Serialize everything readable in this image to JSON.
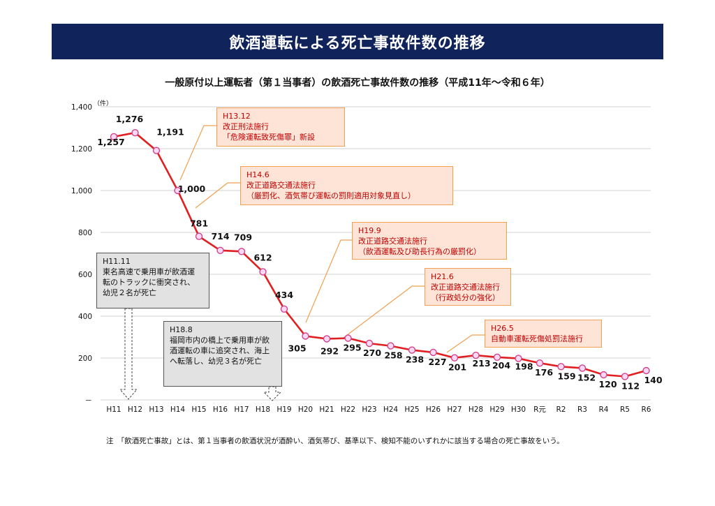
{
  "banner": {
    "title": "飲酒運転による死亡事故件数の推移"
  },
  "chart_data": {
    "type": "line",
    "title": "一般原付以上運転者（第１当事者）の飲酒死亡事故件数の推移（平成11年～令和６年）",
    "y_unit": "（件）",
    "ylim": [
      0,
      1400
    ],
    "yticks": [
      "－",
      "200",
      "400",
      "600",
      "800",
      "1,000",
      "1,200",
      "1,400"
    ],
    "categories": [
      "H11",
      "H12",
      "H13",
      "H14",
      "H15",
      "H16",
      "H17",
      "H18",
      "H19",
      "H20",
      "H21",
      "H22",
      "H23",
      "H24",
      "H25",
      "H26",
      "H27",
      "H28",
      "H29",
      "H30",
      "R元",
      "R2",
      "R3",
      "R4",
      "R5",
      "R6"
    ],
    "values": [
      1257,
      1276,
      1191,
      1000,
      781,
      714,
      709,
      612,
      434,
      305,
      292,
      295,
      270,
      258,
      238,
      227,
      201,
      213,
      204,
      198,
      176,
      159,
      152,
      120,
      112,
      140
    ],
    "value_labels": [
      "1,257",
      "1,276",
      "1,191",
      "1,000",
      "781",
      "714",
      "709",
      "612",
      "434",
      "305",
      "292",
      "295",
      "270",
      "258",
      "238",
      "227",
      "201",
      "213",
      "204",
      "198",
      "176",
      "159",
      "152",
      "120",
      "112",
      "140"
    ],
    "grid": true,
    "line_color": "#e02020",
    "marker_fill": "#fbd9f4",
    "marker_stroke": "#d6408a"
  },
  "annotations": [
    {
      "id": "h13",
      "type": "law",
      "text": "H13.12\n改正刑法施行\n「危険運転致死傷罪」新設"
    },
    {
      "id": "h14",
      "type": "law",
      "text": "H14.6\n改正道路交通法施行\n（厳罰化、酒気帯び運転の罰則適用対象見直し）"
    },
    {
      "id": "h19",
      "type": "law",
      "text": "H19.9\n改正道路交通法施行\n（飲酒運転及び助長行為の厳罰化）"
    },
    {
      "id": "h21",
      "type": "law",
      "text": "H21.6\n改正道路交通法施行\n（行政処分の強化）"
    },
    {
      "id": "h26",
      "type": "law",
      "text": "H26.5\n自動車運転死傷処罰法施行"
    },
    {
      "id": "h11",
      "type": "incident",
      "text": "H11.11\n東名高速で乗用車が飲酒運\n転のトラックに衝突され、\n幼児２名が死亡"
    },
    {
      "id": "h18",
      "type": "incident",
      "text": "H18.8\n福岡市内の橋上で乗用車が飲\n酒運転の車に追突され、海上\nへ転落し、幼児３名が死亡"
    }
  ],
  "footnote": "注　「飲酒死亡事故」とは、第１当事者の飲酒状況が酒酔い、酒気帯び、基準以下、検知不能のいずれかに該当する場合の死亡事故をいう。"
}
